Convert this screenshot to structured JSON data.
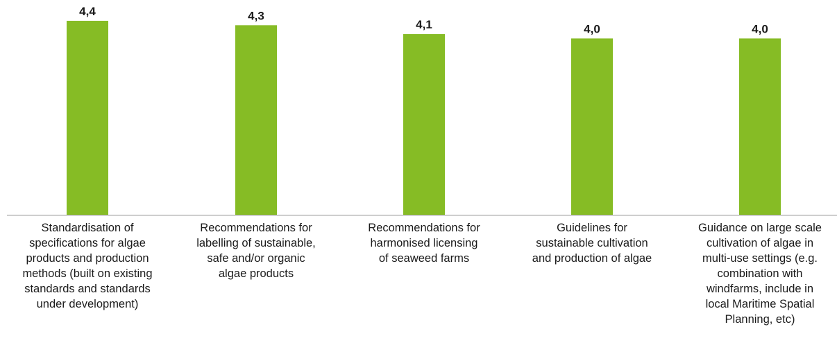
{
  "chart_data": {
    "type": "bar",
    "title": "",
    "xlabel": "",
    "ylabel": "",
    "categories": [
      "Standardisation of specifications for algae products and production methods (built on existing standards and standards under development)",
      "Recommendations for labelling of sustainable, safe and/or organic algae products",
      "Recommendations for harmonised licensing of seaweed farms",
      "Guidelines for sustainable cultivation and production of algae",
      "Guidance on large scale cultivation of algae in multi-use settings (e.g. combination with windfarms, include in local Maritime Spatial Planning, etc)"
    ],
    "values": [
      4.4,
      4.3,
      4.1,
      4.0,
      4.0
    ],
    "data_labels": [
      "4,4",
      "4,3",
      "4,1",
      "4,0",
      "4,0"
    ],
    "bar_color": "#86bc25",
    "axis_color": "#8c8c8c",
    "grid": false,
    "legend": "none"
  }
}
